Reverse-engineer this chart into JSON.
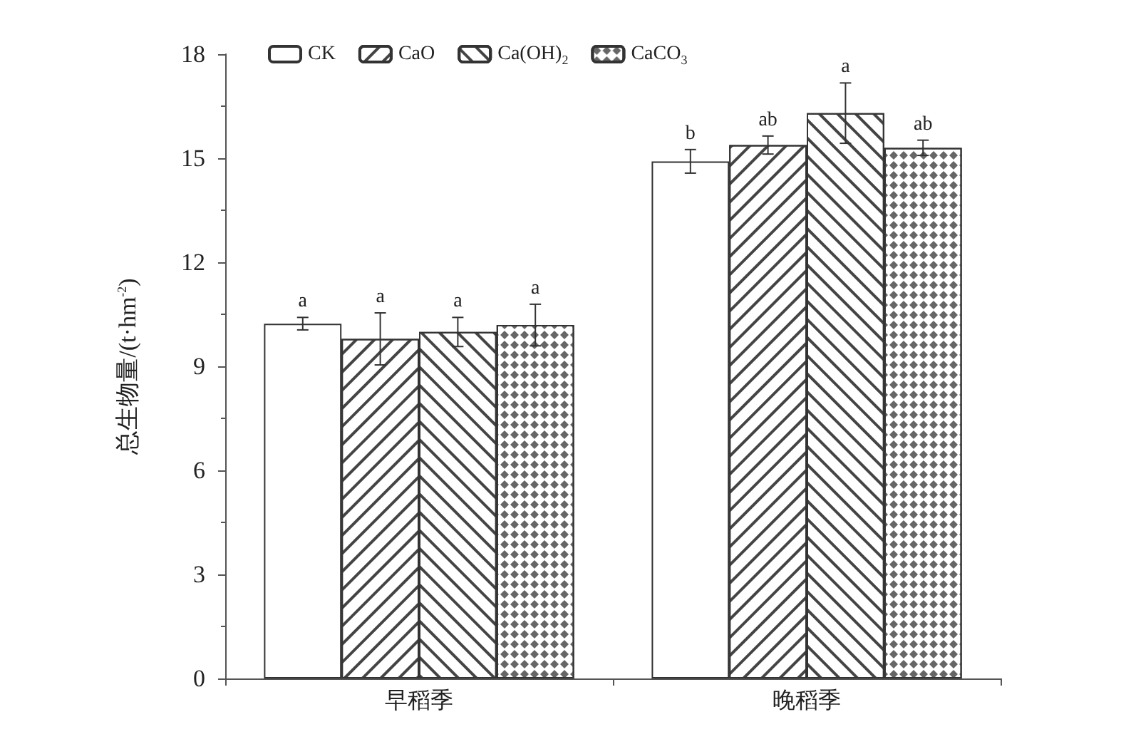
{
  "chart_data": {
    "type": "bar",
    "ylabel": "总生物量/(t·hm$^{-2}$)",
    "categories": [
      "早稻季",
      "晚稻季"
    ],
    "series": [
      {
        "name": "CK",
        "color": "#ffffff",
        "values": [
          10.23,
          14.91
        ],
        "errors": [
          0.18,
          0.34
        ],
        "value_labels": [
          "a",
          "b"
        ]
      },
      {
        "name": "CaO",
        "color": "#ffffff",
        "values": [
          9.79,
          15.38
        ],
        "errors": [
          0.75,
          0.26
        ],
        "value_labels": [
          "a",
          "ab"
        ]
      },
      {
        "name": "Ca(OH)$_{2}$",
        "color": "#ffffff",
        "values": [
          9.99,
          16.3
        ],
        "errors": [
          0.42,
          0.87
        ],
        "value_labels": [
          "a",
          "a"
        ]
      },
      {
        "name": "CaCO$_{3}$",
        "color": "#ffffff",
        "values": [
          10.19,
          15.3
        ],
        "errors": [
          0.6,
          0.22
        ],
        "value_labels": [
          "a",
          "ab"
        ]
      }
    ],
    "ylim": [
      0,
      18
    ],
    "yticks": [
      0,
      3,
      6,
      9,
      12,
      15,
      18
    ],
    "grid": false,
    "legend": "top"
  }
}
